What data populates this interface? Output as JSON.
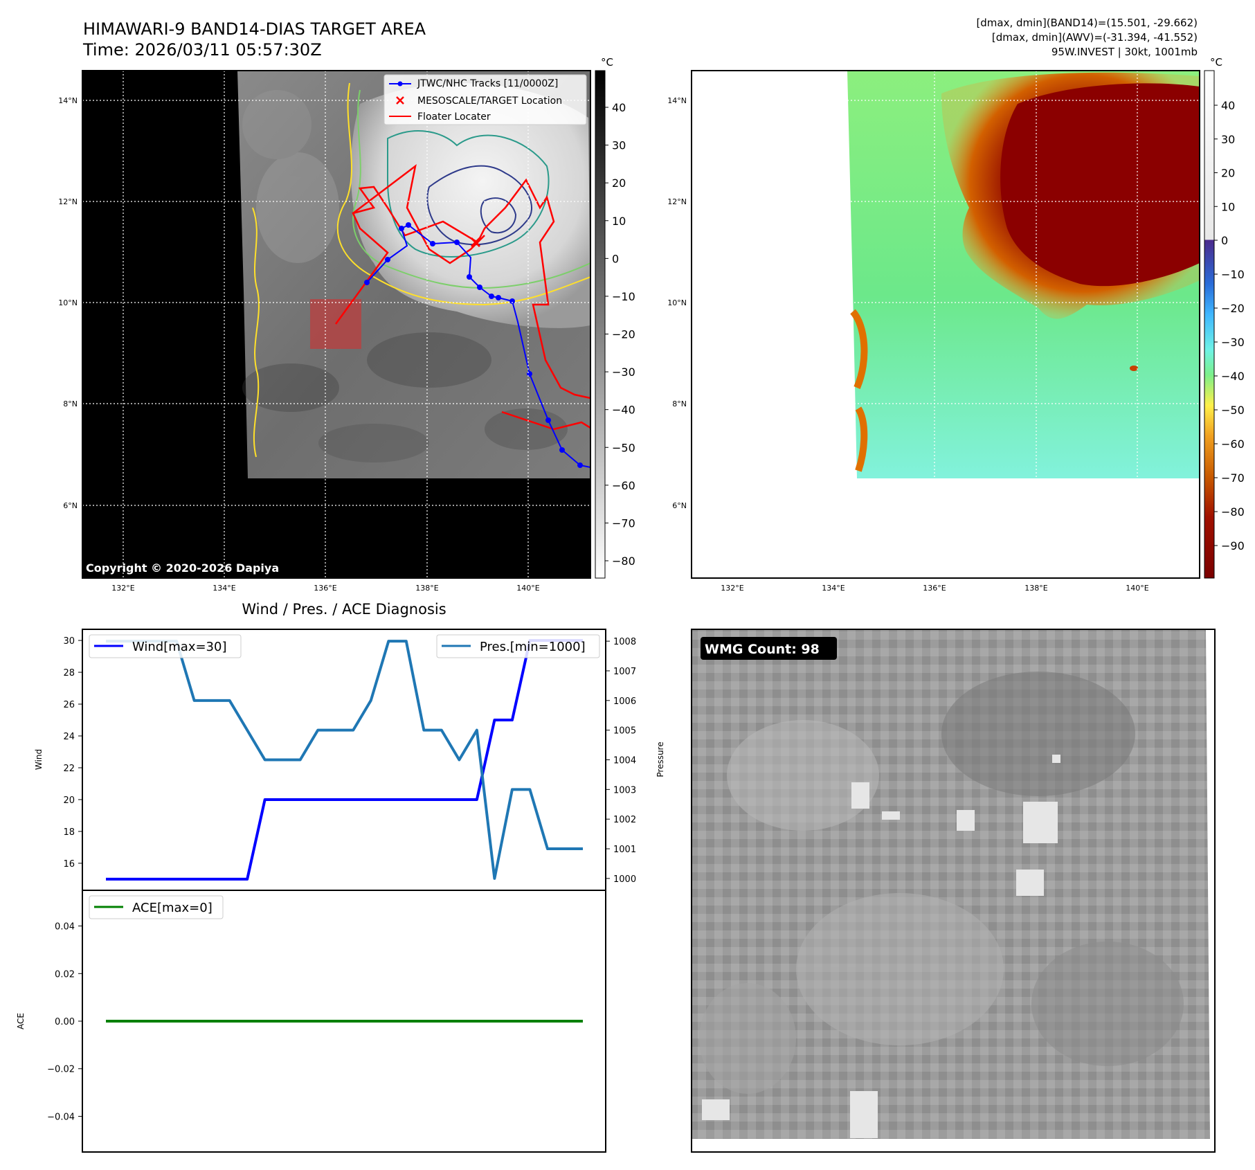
{
  "header": {
    "title_line1": "HIMAWARI-9 BAND14-DIAS TARGET AREA",
    "title_line2": "Time: 2026/03/11 05:57:30Z",
    "stats_line1": "[dmax, dmin](BAND14)=(15.501, -29.662)",
    "stats_line2": "[dmax, dmin](AWV)=(-31.394, -41.552)",
    "stats_line3": "95W.INVEST | 30kt, 1001mb"
  },
  "map_ir": {
    "copyright": "Copyright © 2020-2026 Dapiya",
    "legend": [
      {
        "label": "JTWC/NHC Tracks [11/0000Z]",
        "color": "#0000ff"
      },
      {
        "label": "MESOSCALE/TARGET Location",
        "color": "#ff0000"
      },
      {
        "label": "Floater Locater",
        "color": "#ff0000"
      }
    ],
    "lon_ticks": [
      "132°E",
      "134°E",
      "136°E",
      "138°E",
      "140°E"
    ],
    "lat_ticks": [
      "14°N",
      "12°N",
      "10°N",
      "8°N",
      "6°N"
    ],
    "colorbar_unit": "°C",
    "colorbar_ticks": [
      "40",
      "30",
      "20",
      "10",
      "0",
      "−10",
      "−20",
      "−30",
      "−40",
      "−50",
      "−60",
      "−70",
      "−80"
    ]
  },
  "map_awv": {
    "lon_ticks": [
      "132°E",
      "134°E",
      "136°E",
      "138°E",
      "140°E"
    ],
    "lat_ticks": [
      "14°N",
      "12°N",
      "10°N",
      "8°N",
      "6°N"
    ],
    "colorbar_unit": "°C",
    "colorbar_ticks": [
      "40",
      "30",
      "20",
      "10",
      "0",
      "−10",
      "−20",
      "−30",
      "−40",
      "−50",
      "−60",
      "−70",
      "−80",
      "−90"
    ],
    "colors": {
      "warm_orange": "#e07000",
      "dark_red": "#8b0000",
      "green": "#64e878",
      "cyan": "#7ef0d8"
    }
  },
  "wmg": {
    "label": "WMG Count: 98"
  },
  "chart_data": {
    "type": "line",
    "title": "Wind / Pres. / ACE Diagnosis",
    "x": [
      0,
      1,
      2,
      3,
      4,
      5,
      6,
      7,
      8,
      9,
      10,
      11,
      12,
      13,
      14,
      15,
      16,
      17,
      18,
      19,
      20,
      21,
      22,
      23,
      24,
      25,
      26,
      27
    ],
    "series": [
      {
        "name": "Wind[max=30]",
        "axis": "Wind",
        "color": "#0000ff",
        "values": [
          15,
          15,
          15,
          15,
          15,
          15,
          15,
          15,
          15,
          20,
          20,
          20,
          20,
          20,
          20,
          20,
          20,
          20,
          20,
          20,
          20,
          20,
          25,
          25,
          30,
          30,
          30,
          30
        ]
      },
      {
        "name": "Pres.[min=1000]",
        "axis": "Pressure",
        "color": "#1f77b4",
        "values": [
          1008,
          1008,
          1008,
          1008,
          1008,
          1006,
          1006,
          1006,
          1005,
          1004,
          1004,
          1004,
          1005,
          1005,
          1005,
          1006,
          1008,
          1008,
          1005,
          1005,
          1004,
          1005,
          1000,
          1003,
          1003,
          1001,
          1001,
          1001
        ]
      },
      {
        "name": "ACE[max=0]",
        "axis": "ACE",
        "color": "#008000",
        "values": [
          0,
          0,
          0,
          0,
          0,
          0,
          0,
          0,
          0,
          0,
          0,
          0,
          0,
          0,
          0,
          0,
          0,
          0,
          0,
          0,
          0,
          0,
          0,
          0,
          0,
          0,
          0,
          0
        ]
      }
    ],
    "wind_axis": {
      "label": "Wind",
      "ylim": [
        14.3,
        30.7
      ],
      "ticks": [
        "30",
        "28",
        "26",
        "24",
        "22",
        "20",
        "18",
        "16"
      ]
    },
    "pressure_axis": {
      "label": "Pressure",
      "ylim": [
        999.6,
        1008.4
      ],
      "ticks": [
        "1008",
        "1007",
        "1006",
        "1005",
        "1004",
        "1003",
        "1002",
        "1001",
        "1000"
      ]
    },
    "ace_axis": {
      "label": "ACE",
      "ylim": [
        -0.055,
        0.055
      ],
      "ticks": [
        "0.04",
        "0.02",
        "0.00",
        "−0.02",
        "−0.04"
      ]
    }
  }
}
